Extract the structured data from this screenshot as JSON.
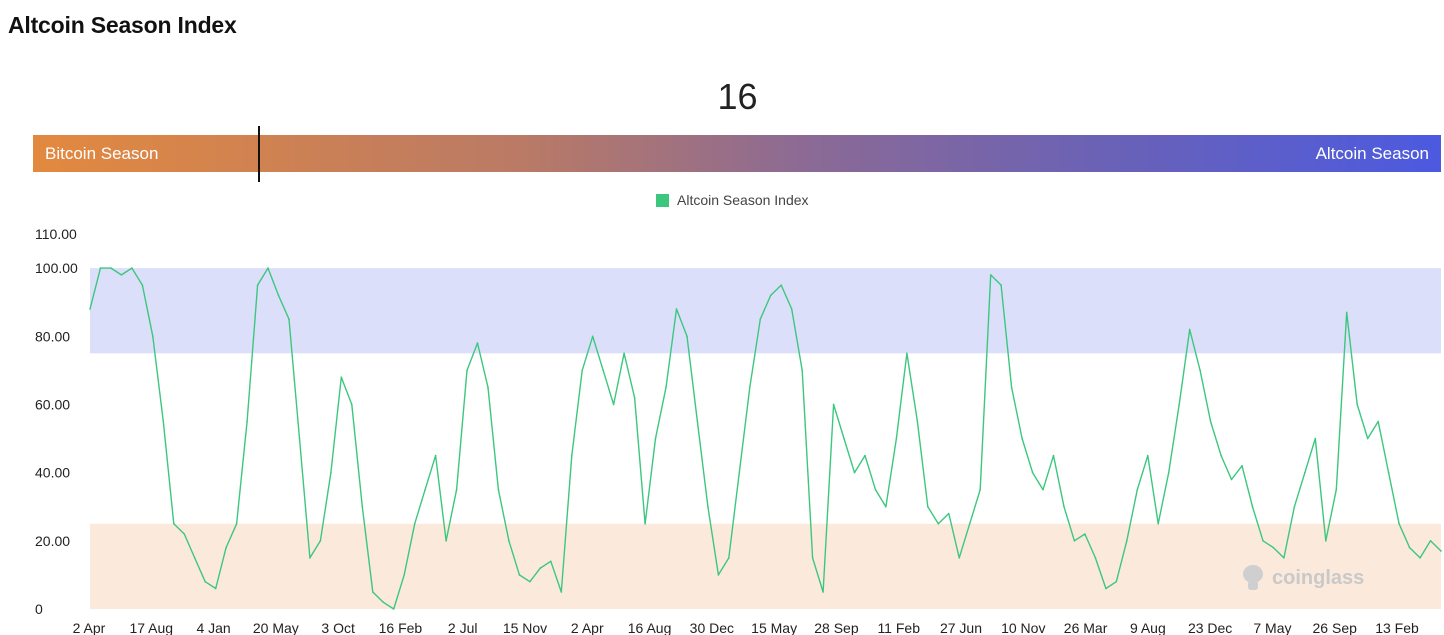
{
  "page": {
    "title": "Altcoin Season Index"
  },
  "indicator": {
    "value": "16",
    "left_label": "Bitcoin Season",
    "right_label": "Altcoin Season",
    "value_fraction": 0.16
  },
  "watermark": "coinglass",
  "chart_data": {
    "type": "line",
    "title": "",
    "legend": [
      "Altcoin Season Index"
    ],
    "legend_position": "top-center",
    "colors": {
      "line": "#3cc77e",
      "altcoin_band": "#dcdffa",
      "bitcoin_band": "#fbe9dc"
    },
    "y_ticks": [
      "0",
      "20.00",
      "40.00",
      "60.00",
      "80.00",
      "100.00",
      "110.00"
    ],
    "y_tick_values": [
      0,
      20,
      40,
      60,
      80,
      100,
      110
    ],
    "ylim": [
      0,
      110
    ],
    "bands": [
      {
        "name": "Altcoin Season",
        "from": 75,
        "to": 100
      },
      {
        "name": "Bitcoin Season",
        "from": 0,
        "to": 25
      }
    ],
    "x_ticks": [
      "2 Apr",
      "17 Aug",
      "4 Jan",
      "20 May",
      "3 Oct",
      "16 Feb",
      "2 Jul",
      "15 Nov",
      "2 Apr",
      "16 Aug",
      "30 Dec",
      "15 May",
      "28 Sep",
      "11 Feb",
      "27 Jun",
      "10 Nov",
      "26 Mar",
      "9 Aug",
      "23 Dec",
      "7 May",
      "26 Sep",
      "13 Feb"
    ],
    "grid": false,
    "series": [
      {
        "name": "Altcoin Season Index",
        "values": [
          88,
          100,
          100,
          98,
          100,
          95,
          80,
          55,
          25,
          22,
          15,
          8,
          6,
          18,
          25,
          55,
          95,
          100,
          92,
          85,
          50,
          15,
          20,
          40,
          68,
          60,
          30,
          5,
          2,
          0,
          10,
          25,
          35,
          45,
          20,
          35,
          70,
          78,
          65,
          35,
          20,
          10,
          8,
          12,
          14,
          5,
          45,
          70,
          80,
          70,
          60,
          75,
          62,
          25,
          50,
          65,
          88,
          80,
          55,
          30,
          10,
          15,
          40,
          65,
          85,
          92,
          95,
          88,
          70,
          15,
          5,
          60,
          50,
          40,
          45,
          35,
          30,
          50,
          75,
          55,
          30,
          25,
          28,
          15,
          25,
          35,
          98,
          95,
          65,
          50,
          40,
          35,
          45,
          30,
          20,
          22,
          15,
          6,
          8,
          20,
          35,
          45,
          25,
          40,
          60,
          82,
          70,
          55,
          45,
          38,
          42,
          30,
          20,
          18,
          15,
          30,
          40,
          50,
          20,
          35,
          87,
          60,
          50,
          55,
          40,
          25,
          18,
          15,
          20,
          17
        ]
      }
    ]
  }
}
